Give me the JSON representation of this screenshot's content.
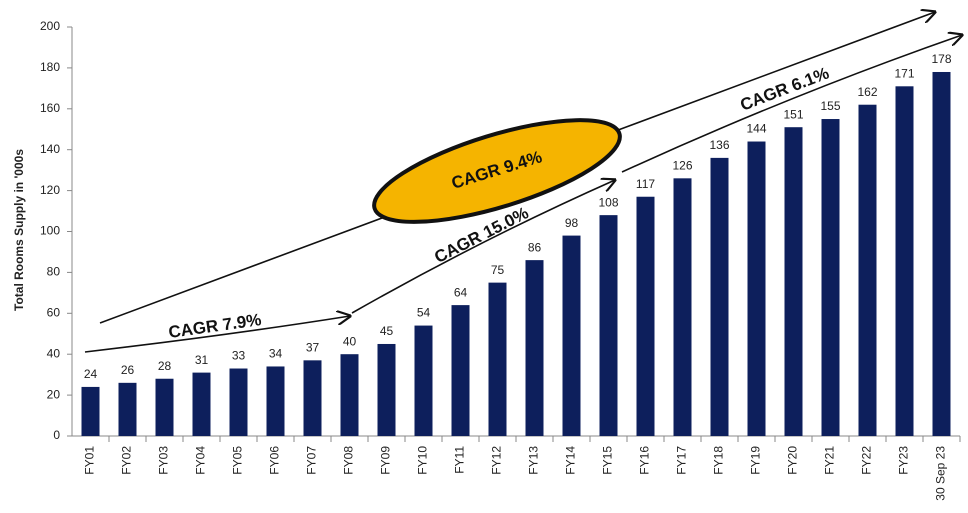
{
  "chart_data": {
    "type": "bar",
    "y_label": "Total Rooms Supply in '000s",
    "categories": [
      "FY01",
      "FY02",
      "FY03",
      "FY04",
      "FY05",
      "FY06",
      "FY07",
      "FY08",
      "FY09",
      "FY10",
      "FY11",
      "FY12",
      "FY13",
      "FY14",
      "FY15",
      "FY16",
      "FY17",
      "FY18",
      "FY19",
      "FY20",
      "FY21",
      "FY22",
      "FY23",
      "30 Sep 23"
    ],
    "values": [
      24,
      26,
      28,
      31,
      33,
      34,
      37,
      40,
      45,
      54,
      64,
      75,
      86,
      98,
      108,
      117,
      126,
      136,
      144,
      151,
      155,
      162,
      171,
      178
    ],
    "color": "#0d1f5c",
    "ylim": [
      0,
      200
    ],
    "yticks": [
      0,
      20,
      40,
      60,
      80,
      100,
      120,
      140,
      160,
      180,
      200
    ],
    "grid": false,
    "annotations": [
      "CAGR 7.9%",
      "CAGR 15.0%",
      "CAGR 6.1%",
      "CAGR 9.4%"
    ]
  }
}
